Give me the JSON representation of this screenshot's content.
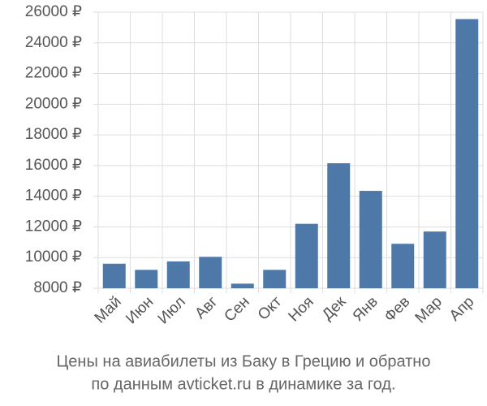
{
  "chart_data": {
    "type": "bar",
    "title": "Цены на авиабилеты из Баку в Грецию и обратно",
    "subtitle": "по данным avticket.ru в динамике за год.",
    "categories": [
      "Май",
      "Июн",
      "Июл",
      "Авг",
      "Сен",
      "Окт",
      "Ноя",
      "Дек",
      "Янв",
      "Фев",
      "Мар",
      "Апр"
    ],
    "values": [
      9600,
      9200,
      9750,
      10050,
      8300,
      9200,
      12200,
      16150,
      14350,
      10900,
      11700,
      25550
    ],
    "color": "#4e78a8",
    "ylim": [
      8000,
      26000
    ],
    "yticks": [
      {
        "value": 8000,
        "label": "8000 ₽"
      },
      {
        "value": 10000,
        "label": "10000 ₽"
      },
      {
        "value": 12000,
        "label": "12000 ₽"
      },
      {
        "value": 14000,
        "label": "14000 ₽"
      },
      {
        "value": 16000,
        "label": "16000 ₽"
      },
      {
        "value": 18000,
        "label": "18000 ₽"
      },
      {
        "value": 20000,
        "label": "20000 ₽"
      },
      {
        "value": 22000,
        "label": "22000 ₽"
      },
      {
        "value": 24000,
        "label": "24000 ₽"
      },
      {
        "value": 26000,
        "label": "26000 ₽"
      }
    ],
    "grid": true
  }
}
